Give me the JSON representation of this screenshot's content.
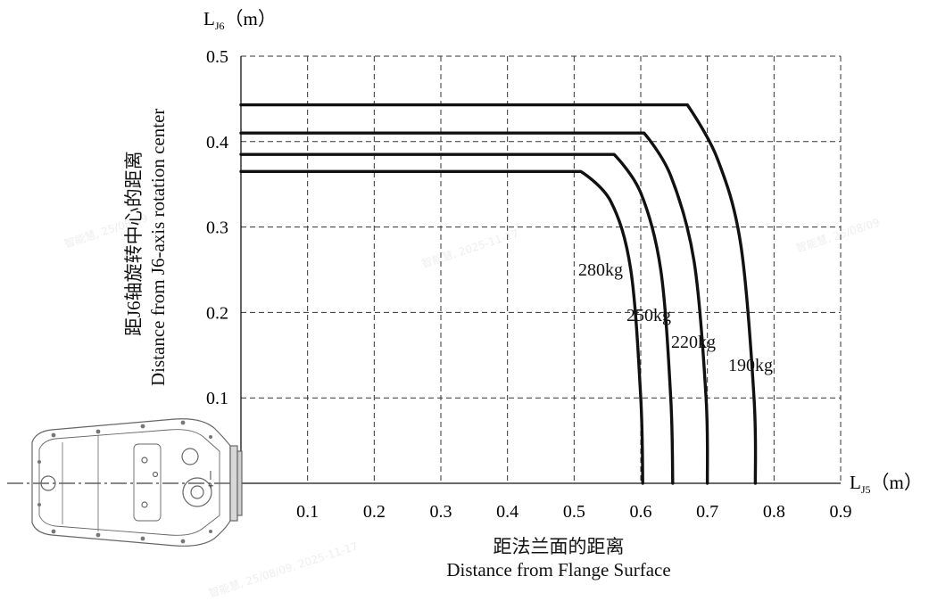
{
  "chart_data": {
    "type": "line",
    "title": "",
    "y_axis_title_main": "L",
    "y_axis_title_sub": "J6",
    "y_axis_title_unit": "（m）",
    "x_axis_title_main": "L",
    "x_axis_title_sub": "J5",
    "x_axis_title_unit": "（m）",
    "ylabel_cn": "距J6轴旋转中心的距离",
    "ylabel_en": "Distance from J6-axis rotation center",
    "xlabel_cn": "距法兰面的距离",
    "xlabel_en": "Distance from Flange Surface",
    "xlim": [
      0,
      0.9
    ],
    "ylim": [
      0,
      0.5
    ],
    "x_ticks": [
      "0.1",
      "0.2",
      "0.3",
      "0.4",
      "0.5",
      "0.6",
      "0.7",
      "0.8",
      "0.9"
    ],
    "y_ticks": [
      "0.1",
      "0.2",
      "0.3",
      "0.4",
      "0.5"
    ],
    "grid": true,
    "grid_style": "dashed",
    "series": [
      {
        "name": "280kg",
        "points": [
          [
            0,
            0.365
          ],
          [
            0.51,
            0.365
          ],
          [
            0.555,
            0.33
          ],
          [
            0.585,
            0.25
          ],
          [
            0.6,
            0.1
          ],
          [
            0.603,
            0.0
          ]
        ]
      },
      {
        "name": "250kg",
        "points": [
          [
            0,
            0.385
          ],
          [
            0.56,
            0.385
          ],
          [
            0.6,
            0.34
          ],
          [
            0.63,
            0.25
          ],
          [
            0.645,
            0.1
          ],
          [
            0.648,
            0.0
          ]
        ]
      },
      {
        "name": "220kg",
        "points": [
          [
            0,
            0.41
          ],
          [
            0.605,
            0.41
          ],
          [
            0.645,
            0.36
          ],
          [
            0.68,
            0.26
          ],
          [
            0.698,
            0.1
          ],
          [
            0.7,
            0.0
          ]
        ]
      },
      {
        "name": "190kg",
        "points": [
          [
            0,
            0.443
          ],
          [
            0.67,
            0.443
          ],
          [
            0.715,
            0.38
          ],
          [
            0.75,
            0.28
          ],
          [
            0.77,
            0.1
          ],
          [
            0.772,
            0.0
          ]
        ]
      }
    ],
    "series_colors": [
      "#111111",
      "#111111",
      "#111111",
      "#111111"
    ]
  },
  "watermarks": [
    "智能慧, 25/08/09, 2025-11-17",
    "智能慧, 2025-11-17",
    "智能慧, 25/08/09"
  ]
}
